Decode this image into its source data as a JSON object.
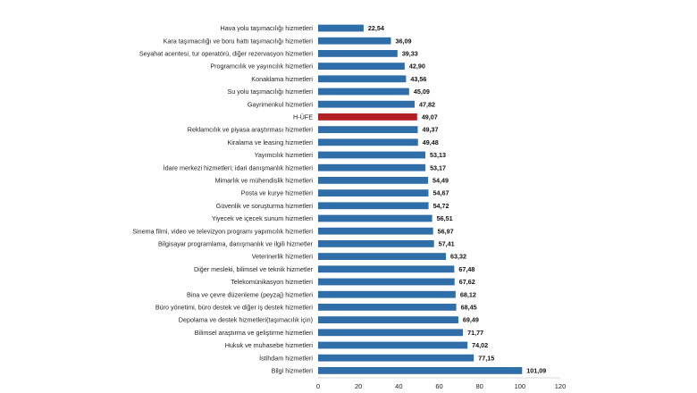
{
  "chart_data": {
    "type": "bar",
    "orientation": "horizontal",
    "title": "",
    "xlabel": "",
    "ylabel": "",
    "xlim": [
      0,
      120
    ],
    "x_ticks": [
      0,
      20,
      40,
      60,
      80,
      100,
      120
    ],
    "grid": false,
    "legend": "none",
    "colors": {
      "default": "#2f6ea9",
      "highlight": "#b21f24"
    },
    "highlight_category": "H-ÜFE",
    "categories": [
      "Hava yolu taşımacılığı hizmetleri",
      "Kara taşımacılığı ve boru hattı taşımacılığı hizmetleri",
      "Seyahat acentesi, tur operatörü, diğer rezervasyon hizmetleri",
      "Programcılık ve yayıncılık hizmetleri",
      "Konaklama hizmetleri",
      "Su yolu taşımacılığı hizmetleri",
      "Gayrimenkul hizmetleri",
      "H-ÜFE",
      "Reklamcılık ve piyasa araştırması hizmetleri",
      "Kiralama ve leasing hizmetleri",
      "Yayımcılık hizmetleri",
      "İdare merkezi hizmetleri; idari danışmanlık hizmetleri",
      "Mimarlık ve mühendislik hizmetleri",
      "Posta ve kurye hizmetleri",
      "Güvenlik ve soruşturma hizmetleri",
      "Yiyecek ve içecek sunum hizmetleri",
      "Sinema filmi, video ve televizyon programı yapımcılık hizmetleri",
      "Bilgisayar programlama, danışmanlık ve ilgili hizmetler",
      "Veterinerlik hizmetleri",
      "Diğer mesleki, bilimsel ve teknik hizmetler",
      "Telekomünikasyon hizmetleri",
      "Bina ve çevre düzenleme (peyzaj) hizmetleri",
      "Büro yönetimi, büro destek ve diğer iş destek hizmetleri",
      "Depolama ve destek hizmetleri(taşımacılık için)",
      "Bilimsel araştırma ve geliştirme hizmetleri",
      "Hukuk ve muhasebe hizmetleri",
      "İstihdam hizmetleri",
      "Bilgi hizmetleri"
    ],
    "values": [
      22.54,
      36.09,
      39.33,
      42.9,
      43.56,
      45.09,
      47.82,
      49.07,
      49.37,
      49.48,
      53.13,
      53.17,
      54.49,
      54.67,
      54.72,
      56.51,
      56.97,
      57.41,
      63.32,
      67.48,
      67.62,
      68.12,
      68.45,
      69.49,
      71.77,
      74.02,
      77.15,
      101.09
    ],
    "value_labels": [
      "22,54",
      "36,09",
      "39,33",
      "42,90",
      "43,56",
      "45,09",
      "47,82",
      "49,07",
      "49,37",
      "49,48",
      "53,13",
      "53,17",
      "54,49",
      "54,67",
      "54,72",
      "56,51",
      "56,97",
      "57,41",
      "63,32",
      "67,48",
      "67,62",
      "68,12",
      "68,45",
      "69,49",
      "71,77",
      "74,02",
      "77,15",
      "101,09"
    ]
  }
}
